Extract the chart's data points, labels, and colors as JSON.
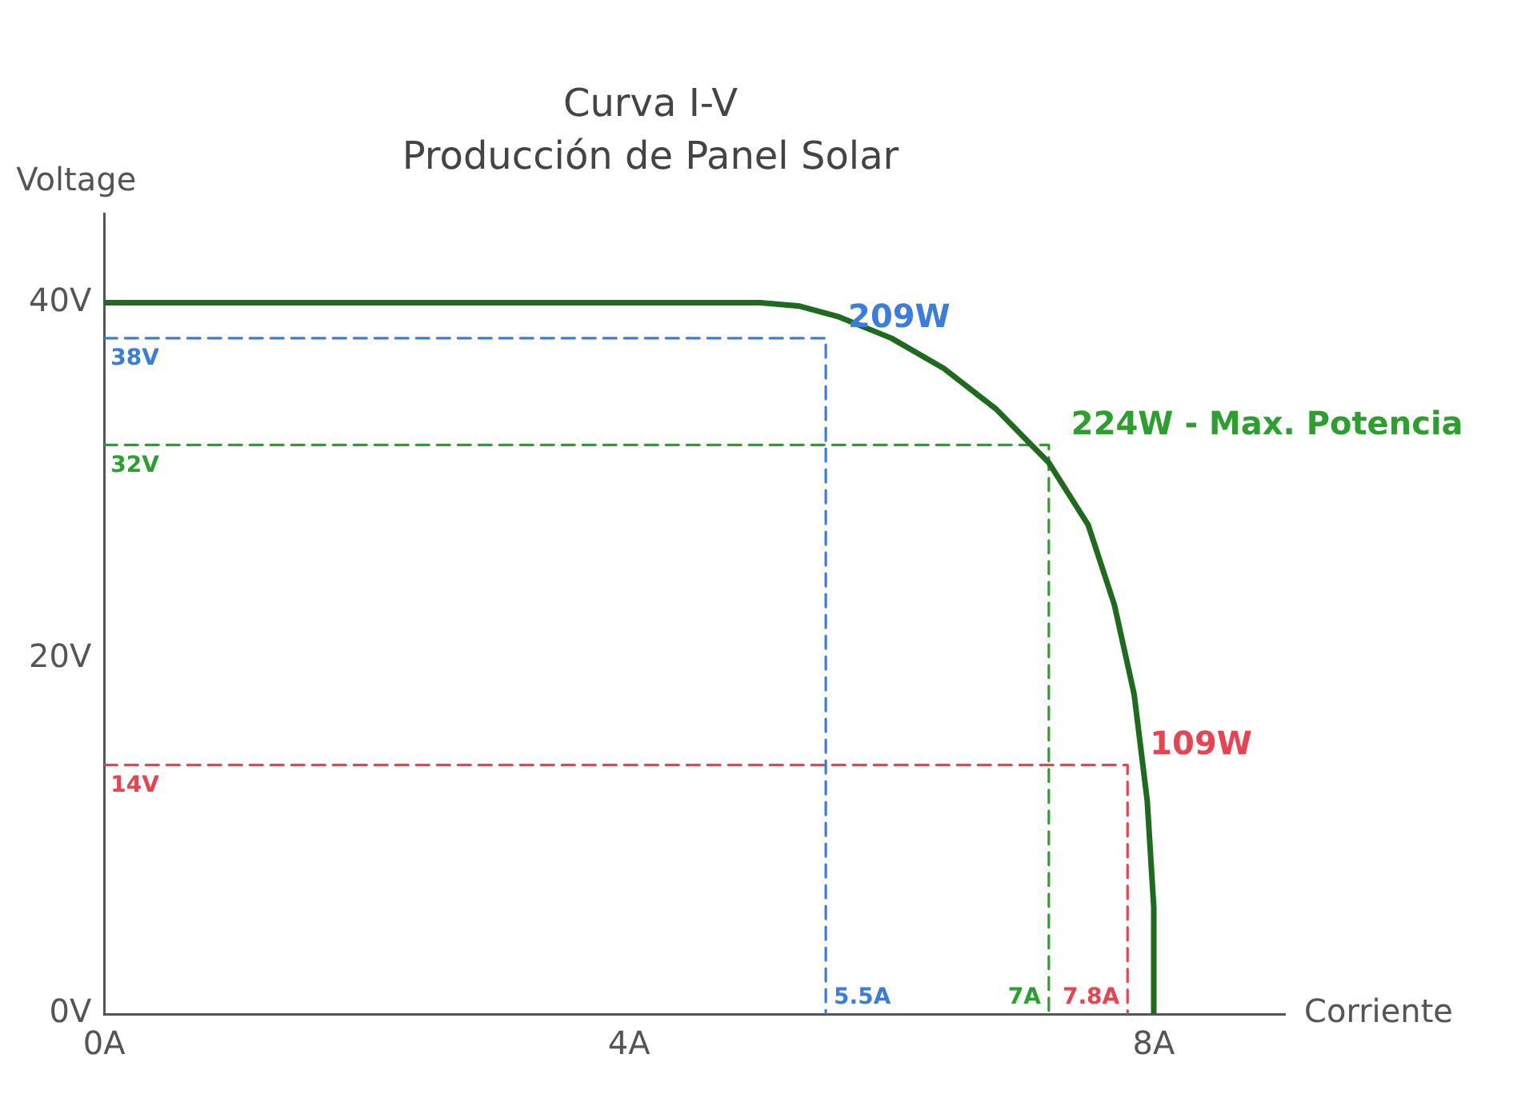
{
  "chart_data": {
    "type": "line",
    "title": "Curva I-V",
    "subtitle": "Producción de Panel Solar",
    "xlabel": "Corriente",
    "ylabel": "Voltage",
    "xlim": [
      0,
      9
    ],
    "ylim": [
      0,
      45
    ],
    "xticks": [
      {
        "value": 0,
        "label": "0A"
      },
      {
        "value": 4,
        "label": "4A"
      },
      {
        "value": 8,
        "label": "8A"
      }
    ],
    "yticks": [
      {
        "value": 0,
        "label": "0V"
      },
      {
        "value": 20,
        "label": "20V"
      },
      {
        "value": 40,
        "label": "40V"
      }
    ],
    "grid": false,
    "legend": false,
    "marker": "none",
    "series": [
      {
        "color": "#1e6b1e",
        "line_style": "solid",
        "x": [
          0,
          5,
          5.3,
          5.6,
          6,
          6.4,
          6.8,
          7.2,
          7.5,
          7.7,
          7.85,
          7.95,
          8,
          8
        ],
        "values": [
          40,
          40,
          39.8,
          39.2,
          38,
          36.3,
          34,
          31,
          27.5,
          23,
          18,
          12,
          6,
          0
        ]
      },
      {
        "color": "#3b7ddd",
        "line_style": "dashed",
        "x": [
          0,
          5.5,
          5.5
        ],
        "values": [
          38,
          38,
          0
        ]
      },
      {
        "color": "#2ca02c",
        "line_style": "dashed",
        "x": [
          0,
          7.2,
          7.2
        ],
        "values": [
          32,
          32,
          0
        ]
      },
      {
        "color": "#e8434f",
        "line_style": "dashed",
        "x": [
          0,
          7.8,
          7.8
        ],
        "values": [
          14,
          14,
          0
        ]
      }
    ],
    "annotations": [
      {
        "text": "209W",
        "x": 5.5,
        "y": 38
      },
      {
        "text": "224W - Max. Potencia",
        "x": 7.2,
        "y": 32
      },
      {
        "text": "109W",
        "x": 7.8,
        "y": 14
      },
      {
        "text": "38V",
        "x": 0,
        "y": 38
      },
      {
        "text": "32V",
        "x": 0,
        "y": 32
      },
      {
        "text": "14V",
        "x": 0,
        "y": 14
      },
      {
        "text": "5.5A",
        "x": 5.5,
        "y": 0
      },
      {
        "text": "7A",
        "x": 7.2,
        "y": 0
      },
      {
        "text": "7.8A",
        "x": 7.8,
        "y": 0
      }
    ]
  }
}
